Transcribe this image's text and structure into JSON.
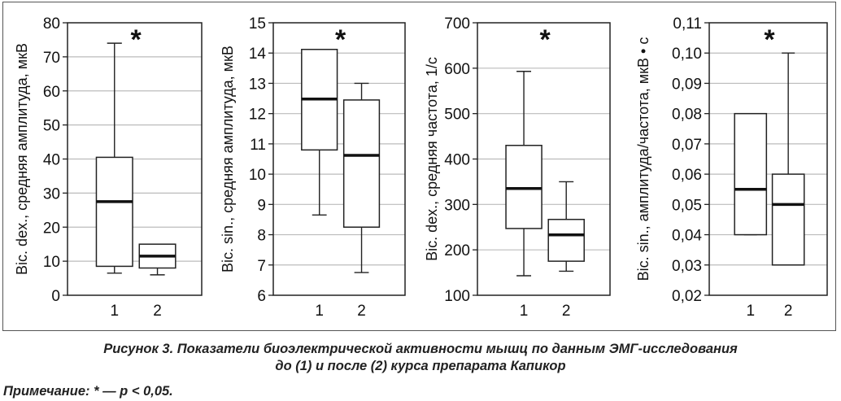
{
  "chart_data": [
    {
      "type": "boxplot",
      "ylabel": "Bic. dex., средняя амплитуда, мкВ",
      "ylim": [
        0,
        80
      ],
      "yticks": [
        0,
        10,
        20,
        30,
        40,
        50,
        60,
        70,
        80
      ],
      "tick_labels": [
        "0",
        "10",
        "20",
        "30",
        "40",
        "50",
        "60",
        "70",
        "80"
      ],
      "grid": true,
      "categories": [
        "1",
        "2"
      ],
      "boxes": [
        {
          "category": "1",
          "whisker_low": 6.5,
          "q1": 8.5,
          "median": 27.5,
          "q3": 40.5,
          "whisker_high": 74
        },
        {
          "category": "2",
          "whisker_low": 6,
          "q1": 8,
          "median": 11.5,
          "q3": 15,
          "whisker_high": 15
        }
      ],
      "annotation": "*"
    },
    {
      "type": "boxplot",
      "ylabel": "Bic. sin., средняя амплитуда, мкВ",
      "ylim": [
        6,
        15
      ],
      "yticks": [
        6,
        7,
        8,
        9,
        10,
        11,
        12,
        13,
        14,
        15
      ],
      "tick_labels": [
        "6",
        "7",
        "8",
        "9",
        "10",
        "11",
        "12",
        "13",
        "14",
        "15"
      ],
      "grid": true,
      "categories": [
        "1",
        "2"
      ],
      "boxes": [
        {
          "category": "1",
          "whisker_low": 8.65,
          "q1": 10.8,
          "median": 12.48,
          "q3": 14.12,
          "whisker_high": 14.12
        },
        {
          "category": "2",
          "whisker_low": 6.75,
          "q1": 8.25,
          "median": 10.62,
          "q3": 12.45,
          "whisker_high": 13.0
        }
      ],
      "annotation": "*"
    },
    {
      "type": "boxplot",
      "ylabel": "Bic. dex., средняя частота, 1/с",
      "ylim": [
        100,
        700
      ],
      "yticks": [
        100,
        200,
        300,
        400,
        500,
        600,
        700
      ],
      "tick_labels": [
        "100",
        "200",
        "300",
        "400",
        "500",
        "600",
        "700"
      ],
      "grid": true,
      "categories": [
        "1",
        "2"
      ],
      "boxes": [
        {
          "category": "1",
          "whisker_low": 143,
          "q1": 247,
          "median": 335,
          "q3": 430,
          "whisker_high": 593
        },
        {
          "category": "2",
          "whisker_low": 153,
          "q1": 175,
          "median": 233,
          "q3": 267,
          "whisker_high": 350
        }
      ],
      "annotation": "*"
    },
    {
      "type": "boxplot",
      "ylabel": "Bic. sin., амплитуда/частота, мкВ • с",
      "ylim": [
        0.02,
        0.11
      ],
      "yticks": [
        0.02,
        0.03,
        0.04,
        0.05,
        0.06,
        0.07,
        0.08,
        0.09,
        0.1,
        0.11
      ],
      "tick_labels": [
        "0,02",
        "0,03",
        "0,04",
        "0,05",
        "0,06",
        "0,07",
        "0,08",
        "0,09",
        "0,10",
        "0,11"
      ],
      "grid": true,
      "categories": [
        "1",
        "2"
      ],
      "boxes": [
        {
          "category": "1",
          "whisker_low": 0.04,
          "q1": 0.04,
          "median": 0.055,
          "q3": 0.08,
          "whisker_high": 0.08
        },
        {
          "category": "2",
          "whisker_low": 0.03,
          "q1": 0.03,
          "median": 0.05,
          "q3": 0.06,
          "whisker_high": 0.1
        }
      ],
      "annotation": "*"
    }
  ],
  "caption": {
    "line1": "Рисунок 3. Показатели биоэлектрической активности мышц по данным ЭМГ-исследования",
    "line2": "до (1) и после (2) курса препарата Капикор"
  },
  "note": "Примечание: * — p < 0,05."
}
